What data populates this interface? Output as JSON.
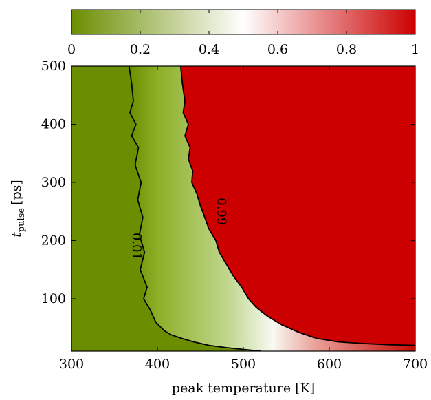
{
  "chart_data": {
    "type": "heatmap",
    "title": "",
    "xlabel": "peak temperature [K]",
    "ylabel": {
      "base": "t",
      "subscript": "pulse",
      "unit": "[ps]"
    },
    "xlim": [
      300,
      700
    ],
    "ylim": [
      10,
      500
    ],
    "x_ticks": [
      "300",
      "400",
      "500",
      "600",
      "700"
    ],
    "y_ticks": [
      "100",
      "200",
      "300",
      "400",
      "500"
    ],
    "colorbar": {
      "range": [
        0,
        1
      ],
      "ticks": [
        "0",
        "0.2",
        "0.4",
        "0.6",
        "0.8",
        "1"
      ],
      "colors": {
        "low": "#6b8e00",
        "mid": "#ffffff",
        "high": "#cc0000"
      }
    },
    "contours": [
      {
        "level": 0.01,
        "label": "0.01",
        "points": [
          [
            367,
            500
          ],
          [
            370,
            470
          ],
          [
            372,
            440
          ],
          [
            368,
            420
          ],
          [
            375,
            400
          ],
          [
            370,
            380
          ],
          [
            378,
            360
          ],
          [
            374,
            330
          ],
          [
            381,
            300
          ],
          [
            377,
            270
          ],
          [
            383,
            240
          ],
          [
            379,
            210
          ],
          [
            385,
            180
          ],
          [
            380,
            150
          ],
          [
            388,
            120
          ],
          [
            384,
            100
          ],
          [
            392,
            80
          ],
          [
            398,
            60
          ],
          [
            408,
            45
          ],
          [
            416,
            38
          ],
          [
            428,
            32
          ],
          [
            442,
            26
          ],
          [
            460,
            20
          ],
          [
            480,
            16
          ],
          [
            500,
            13
          ],
          [
            520,
            10
          ]
        ]
      },
      {
        "level": 0.99,
        "label": "0.99",
        "points": [
          [
            427,
            500
          ],
          [
            429,
            470
          ],
          [
            432,
            440
          ],
          [
            430,
            420
          ],
          [
            436,
            400
          ],
          [
            432,
            380
          ],
          [
            438,
            360
          ],
          [
            436,
            340
          ],
          [
            441,
            320
          ],
          [
            440,
            300
          ],
          [
            446,
            280
          ],
          [
            450,
            260
          ],
          [
            455,
            240
          ],
          [
            460,
            220
          ],
          [
            468,
            200
          ],
          [
            472,
            180
          ],
          [
            480,
            160
          ],
          [
            488,
            140
          ],
          [
            498,
            120
          ],
          [
            506,
            100
          ],
          [
            515,
            85
          ],
          [
            528,
            70
          ],
          [
            545,
            55
          ],
          [
            565,
            42
          ],
          [
            585,
            32
          ],
          [
            610,
            26
          ],
          [
            640,
            23
          ],
          [
            670,
            21
          ],
          [
            700,
            20
          ]
        ]
      }
    ]
  }
}
